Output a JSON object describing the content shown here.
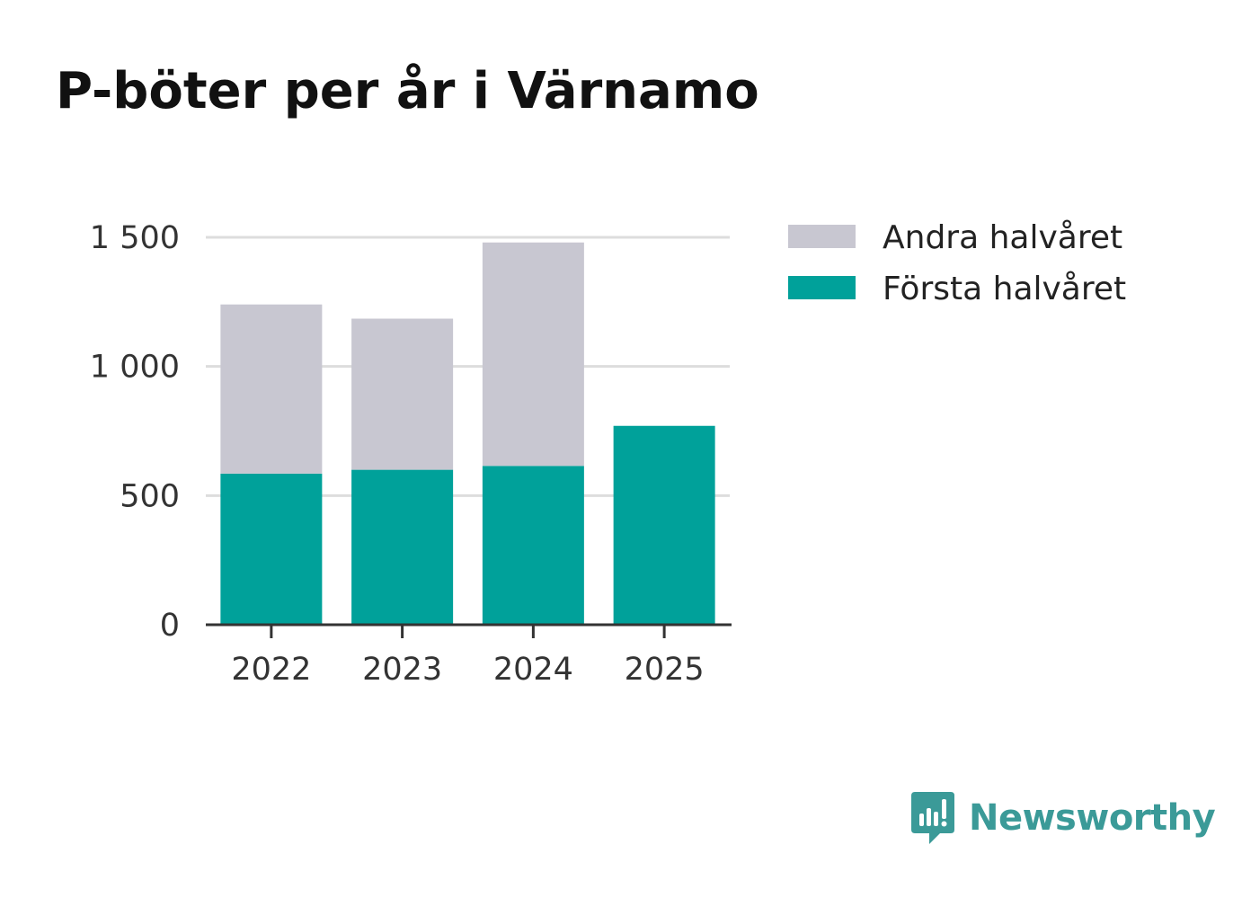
{
  "title": "P-böter per år i Värnamo",
  "brand": {
    "name": "Newsworthy",
    "icon": "newsworthy-logo-icon",
    "color": "#3b9a98"
  },
  "chart_data": {
    "type": "bar",
    "stacked": true,
    "title": "P-böter per år i Värnamo",
    "xlabel": "",
    "ylabel": "",
    "categories": [
      "2022",
      "2023",
      "2024",
      "2025"
    ],
    "series": [
      {
        "name": "Första halvåret",
        "color": "#00a19a",
        "values": [
          585,
          600,
          615,
          770
        ]
      },
      {
        "name": "Andra halvåret",
        "color": "#c8c7d1",
        "values": [
          655,
          585,
          865,
          0
        ]
      }
    ],
    "ylim": [
      0,
      1500
    ],
    "yticks": [
      0,
      500,
      1000,
      1500
    ],
    "ytick_labels": [
      "0",
      "500",
      "1 000",
      "1 500"
    ],
    "grid": true,
    "legend": "top-right",
    "legend_order": [
      "Andra halvåret",
      "Första halvåret"
    ]
  }
}
